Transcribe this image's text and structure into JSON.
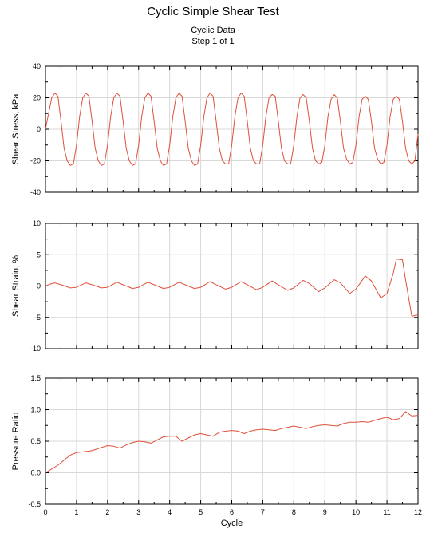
{
  "titles": {
    "main": "Cyclic Simple Shear Test",
    "sub": "Cyclic Data",
    "step": "Step 1 of 1"
  },
  "colors": {
    "series": "#e0503a",
    "grid": "#d8d8d8",
    "axis": "#000000"
  },
  "chart_data": [
    {
      "type": "line",
      "ylabel": "Shear Stress, kPa",
      "xlabel": "",
      "xlim": [
        0,
        12
      ],
      "ylim": [
        -40,
        40
      ],
      "x_ticks": [
        0,
        1,
        2,
        3,
        4,
        5,
        6,
        7,
        8,
        9,
        10,
        11,
        12
      ],
      "y_ticks": [
        -40,
        -20,
        0,
        20,
        40
      ],
      "grid": true,
      "series": [
        {
          "x": [
            0,
            0.1,
            0.2,
            0.3,
            0.4,
            0.5,
            0.6,
            0.7,
            0.8,
            0.9,
            1.0,
            1.1,
            1.2,
            1.3,
            1.4,
            1.5,
            1.6,
            1.7,
            1.8,
            1.9,
            2.0,
            2.1,
            2.2,
            2.3,
            2.4,
            2.5,
            2.6,
            2.7,
            2.8,
            2.9,
            3.0,
            3.1,
            3.2,
            3.3,
            3.4,
            3.5,
            3.6,
            3.7,
            3.8,
            3.9,
            4.0,
            4.1,
            4.2,
            4.3,
            4.4,
            4.5,
            4.6,
            4.7,
            4.8,
            4.9,
            5.0,
            5.1,
            5.2,
            5.3,
            5.4,
            5.5,
            5.6,
            5.7,
            5.8,
            5.9,
            6.0,
            6.1,
            6.2,
            6.3,
            6.4,
            6.5,
            6.6,
            6.7,
            6.8,
            6.9,
            7.0,
            7.1,
            7.2,
            7.3,
            7.4,
            7.5,
            7.6,
            7.7,
            7.8,
            7.9,
            8.0,
            8.1,
            8.2,
            8.3,
            8.4,
            8.5,
            8.6,
            8.7,
            8.8,
            8.9,
            9.0,
            9.1,
            9.2,
            9.3,
            9.4,
            9.5,
            9.6,
            9.7,
            9.8,
            9.9,
            10.0,
            10.1,
            10.2,
            10.3,
            10.4,
            10.5,
            10.6,
            10.7,
            10.8,
            10.9,
            11.0,
            11.1,
            11.2,
            11.3,
            11.4,
            11.5,
            11.6,
            11.7,
            11.8,
            11.9,
            12.0
          ],
          "values": [
            0,
            10,
            20,
            23,
            21,
            5,
            -12,
            -20,
            -23,
            -22,
            -10,
            8,
            20,
            23,
            21,
            5,
            -12,
            -20,
            -23,
            -22,
            -10,
            8,
            20,
            23,
            21,
            5,
            -12,
            -20,
            -23,
            -22,
            -10,
            8,
            20,
            23,
            21,
            5,
            -12,
            -20,
            -23,
            -22,
            -10,
            8,
            20,
            23,
            21,
            5,
            -12,
            -20,
            -23,
            -22,
            -10,
            8,
            20,
            23,
            21,
            5,
            -12,
            -20,
            -22,
            -22,
            -10,
            8,
            20,
            23,
            21,
            5,
            -12,
            -20,
            -22,
            -22,
            -10,
            8,
            20,
            22,
            21,
            5,
            -12,
            -20,
            -22,
            -22,
            -10,
            8,
            20,
            22,
            20,
            5,
            -12,
            -20,
            -22,
            -21,
            -10,
            8,
            19,
            22,
            20,
            5,
            -12,
            -19,
            -22,
            -21,
            -10,
            8,
            19,
            21,
            19,
            5,
            -12,
            -19,
            -22,
            -21,
            -10,
            8,
            19,
            21,
            19,
            5,
            -12,
            -20,
            -22,
            -20,
            -3
          ]
        }
      ]
    },
    {
      "type": "line",
      "ylabel": "Shear Strain, %",
      "xlabel": "",
      "xlim": [
        0,
        12
      ],
      "ylim": [
        -10,
        10
      ],
      "x_ticks": [
        0,
        1,
        2,
        3,
        4,
        5,
        6,
        7,
        8,
        9,
        10,
        11,
        12
      ],
      "y_ticks": [
        -10,
        -5,
        0,
        5,
        10
      ],
      "grid": true,
      "series": [
        {
          "x": [
            0,
            0.15,
            0.3,
            0.5,
            0.8,
            1.0,
            1.3,
            1.5,
            1.8,
            2.0,
            2.3,
            2.5,
            2.8,
            3.0,
            3.3,
            3.5,
            3.8,
            4.0,
            4.3,
            4.5,
            4.8,
            5.0,
            5.3,
            5.5,
            5.8,
            6.0,
            6.3,
            6.5,
            6.8,
            7.0,
            7.3,
            7.5,
            7.8,
            8.0,
            8.3,
            8.5,
            8.8,
            9.0,
            9.3,
            9.5,
            9.8,
            10.0,
            10.3,
            10.5,
            10.8,
            11.0,
            11.2,
            11.3,
            11.5,
            11.6,
            11.8,
            12.0
          ],
          "values": [
            0,
            0.3,
            0.5,
            0.2,
            -0.3,
            -0.2,
            0.5,
            0.2,
            -0.3,
            -0.2,
            0.6,
            0.2,
            -0.4,
            -0.2,
            0.6,
            0.2,
            -0.4,
            -0.2,
            0.6,
            0.2,
            -0.4,
            -0.2,
            0.7,
            0.2,
            -0.5,
            -0.2,
            0.7,
            0.2,
            -0.6,
            -0.2,
            0.8,
            0.2,
            -0.7,
            -0.3,
            0.9,
            0.4,
            -0.9,
            -0.3,
            1.0,
            0.5,
            -1.2,
            -0.5,
            1.6,
            0.8,
            -1.9,
            -1.2,
            2.0,
            4.3,
            4.2,
            1.0,
            -4.8,
            -4.6
          ]
        }
      ]
    },
    {
      "type": "line",
      "ylabel": "Pressure Ratio",
      "xlabel": "Cycle",
      "xlim": [
        0,
        12
      ],
      "ylim": [
        -0.5,
        1.5
      ],
      "x_ticks": [
        0,
        1,
        2,
        3,
        4,
        5,
        6,
        7,
        8,
        9,
        10,
        11,
        12
      ],
      "y_ticks": [
        "-0.5",
        "0.0",
        "0.5",
        "1.0",
        "1.5"
      ],
      "grid": true,
      "series": [
        {
          "x": [
            0,
            0.2,
            0.4,
            0.6,
            0.8,
            1.0,
            1.2,
            1.5,
            1.8,
            2.0,
            2.2,
            2.4,
            2.6,
            2.8,
            3.0,
            3.2,
            3.4,
            3.6,
            3.8,
            4.0,
            4.2,
            4.4,
            4.6,
            4.8,
            5.0,
            5.2,
            5.4,
            5.6,
            5.8,
            6.0,
            6.2,
            6.4,
            6.6,
            6.8,
            7.0,
            7.2,
            7.4,
            7.6,
            7.8,
            8.0,
            8.2,
            8.4,
            8.6,
            8.8,
            9.0,
            9.2,
            9.4,
            9.6,
            9.8,
            10.0,
            10.2,
            10.4,
            10.6,
            10.8,
            11.0,
            11.2,
            11.4,
            11.6,
            11.8,
            12.0
          ],
          "values": [
            0.0,
            0.06,
            0.12,
            0.2,
            0.28,
            0.32,
            0.33,
            0.35,
            0.4,
            0.43,
            0.42,
            0.39,
            0.44,
            0.48,
            0.5,
            0.49,
            0.47,
            0.52,
            0.57,
            0.58,
            0.58,
            0.5,
            0.55,
            0.6,
            0.62,
            0.6,
            0.58,
            0.64,
            0.66,
            0.67,
            0.66,
            0.62,
            0.66,
            0.68,
            0.69,
            0.68,
            0.67,
            0.7,
            0.72,
            0.74,
            0.72,
            0.7,
            0.73,
            0.75,
            0.76,
            0.75,
            0.74,
            0.78,
            0.8,
            0.8,
            0.81,
            0.8,
            0.83,
            0.86,
            0.88,
            0.84,
            0.86,
            0.97,
            0.9,
            0.91
          ]
        }
      ]
    }
  ]
}
